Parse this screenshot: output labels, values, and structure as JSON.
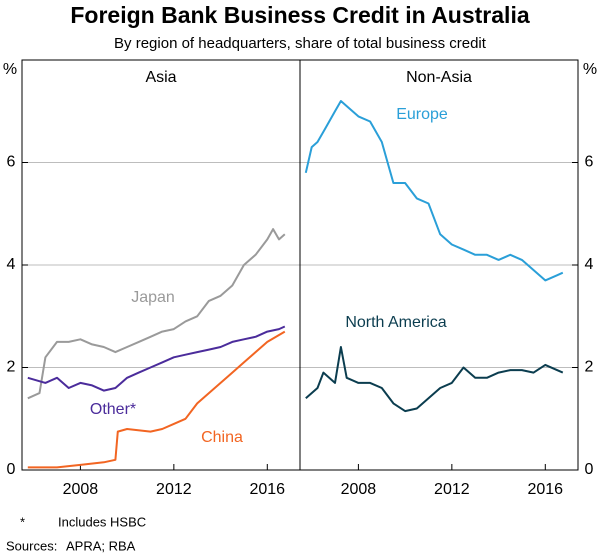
{
  "title": "Foreign Bank Business Credit in Australia",
  "subtitle": "By region of headquarters, share of total business credit",
  "notes": [
    {
      "marker": "*",
      "text": "Includes HSBC"
    },
    {
      "marker": "Sources:",
      "text": "APRA; RBA"
    }
  ],
  "chart_data": [
    {
      "type": "line",
      "title": "Asia",
      "y_unit": "%",
      "xlim": [
        2005.5,
        2017.4
      ],
      "xticks": [
        2008,
        2012,
        2016
      ],
      "ylim": [
        0,
        8
      ],
      "yticks": [
        0,
        2,
        4,
        6
      ],
      "grid": true,
      "ytick_side": "left",
      "series": [
        {
          "name": "Japan",
          "color": "#9a9a9a",
          "x": [
            2005.75,
            2006.25,
            2006.5,
            2007,
            2007.5,
            2008,
            2008.5,
            2009,
            2009.5,
            2010,
            2010.5,
            2011,
            2011.5,
            2012,
            2012.5,
            2013,
            2013.5,
            2014,
            2014.5,
            2015,
            2015.5,
            2016,
            2016.25,
            2016.5,
            2016.75
          ],
          "values": [
            1.4,
            1.5,
            2.2,
            2.5,
            2.5,
            2.55,
            2.45,
            2.4,
            2.3,
            2.4,
            2.5,
            2.6,
            2.7,
            2.75,
            2.9,
            3.0,
            3.3,
            3.4,
            3.6,
            4.0,
            4.2,
            4.5,
            4.7,
            4.5,
            4.6
          ]
        },
        {
          "name": "Other*",
          "color": "#4b2c9b",
          "x": [
            2005.75,
            2006.5,
            2007,
            2007.5,
            2008,
            2008.5,
            2009,
            2009.5,
            2010,
            2010.5,
            2011,
            2011.5,
            2012,
            2012.5,
            2013,
            2013.5,
            2014,
            2014.5,
            2015,
            2015.5,
            2016,
            2016.5,
            2016.75
          ],
          "values": [
            1.8,
            1.7,
            1.8,
            1.6,
            1.7,
            1.65,
            1.55,
            1.6,
            1.8,
            1.9,
            2.0,
            2.1,
            2.2,
            2.25,
            2.3,
            2.35,
            2.4,
            2.5,
            2.55,
            2.6,
            2.7,
            2.75,
            2.8
          ]
        },
        {
          "name": "China",
          "color": "#f26522",
          "x": [
            2005.75,
            2007,
            2008,
            2009,
            2009.5,
            2009.6,
            2010,
            2011,
            2011.5,
            2012,
            2012.5,
            2013,
            2013.5,
            2014,
            2014.5,
            2015,
            2015.5,
            2016,
            2016.75
          ],
          "values": [
            0.05,
            0.05,
            0.1,
            0.15,
            0.2,
            0.75,
            0.8,
            0.75,
            0.8,
            0.9,
            1.0,
            1.3,
            1.5,
            1.7,
            1.9,
            2.1,
            2.3,
            2.5,
            2.7
          ]
        }
      ]
    },
    {
      "type": "line",
      "title": "Non-Asia",
      "y_unit": "%",
      "xlim": [
        2005.5,
        2017.4
      ],
      "xticks": [
        2008,
        2012,
        2016
      ],
      "ylim": [
        0,
        8
      ],
      "yticks": [
        0,
        2,
        4,
        6
      ],
      "grid": true,
      "ytick_side": "right",
      "series": [
        {
          "name": "Europe",
          "color": "#2a9fd8",
          "x": [
            2005.75,
            2006,
            2006.25,
            2006.5,
            2007,
            2007.25,
            2007.5,
            2008,
            2008.5,
            2009,
            2009.5,
            2010,
            2010.5,
            2011,
            2011.5,
            2012,
            2012.5,
            2013,
            2013.5,
            2014,
            2014.5,
            2015,
            2015.5,
            2016,
            2016.5,
            2016.75
          ],
          "values": [
            5.8,
            6.3,
            6.4,
            6.6,
            7.0,
            7.2,
            7.1,
            6.9,
            6.8,
            6.4,
            5.6,
            5.6,
            5.3,
            5.2,
            4.6,
            4.4,
            4.3,
            4.2,
            4.2,
            4.1,
            4.2,
            4.1,
            3.9,
            3.7,
            3.8,
            3.85
          ]
        },
        {
          "name": "North America",
          "color": "#0b3d4f",
          "x": [
            2005.75,
            2006.25,
            2006.5,
            2007,
            2007.25,
            2007.5,
            2008,
            2008.5,
            2009,
            2009.5,
            2010,
            2010.5,
            2011,
            2011.5,
            2012,
            2012.5,
            2013,
            2013.5,
            2014,
            2014.5,
            2015,
            2015.5,
            2016,
            2016.5,
            2016.75
          ],
          "values": [
            1.4,
            1.6,
            1.9,
            1.7,
            2.4,
            1.8,
            1.7,
            1.7,
            1.6,
            1.3,
            1.15,
            1.2,
            1.4,
            1.6,
            1.7,
            2.0,
            1.8,
            1.8,
            1.9,
            1.95,
            1.95,
            1.9,
            2.05,
            1.95,
            1.9
          ]
        }
      ]
    }
  ]
}
